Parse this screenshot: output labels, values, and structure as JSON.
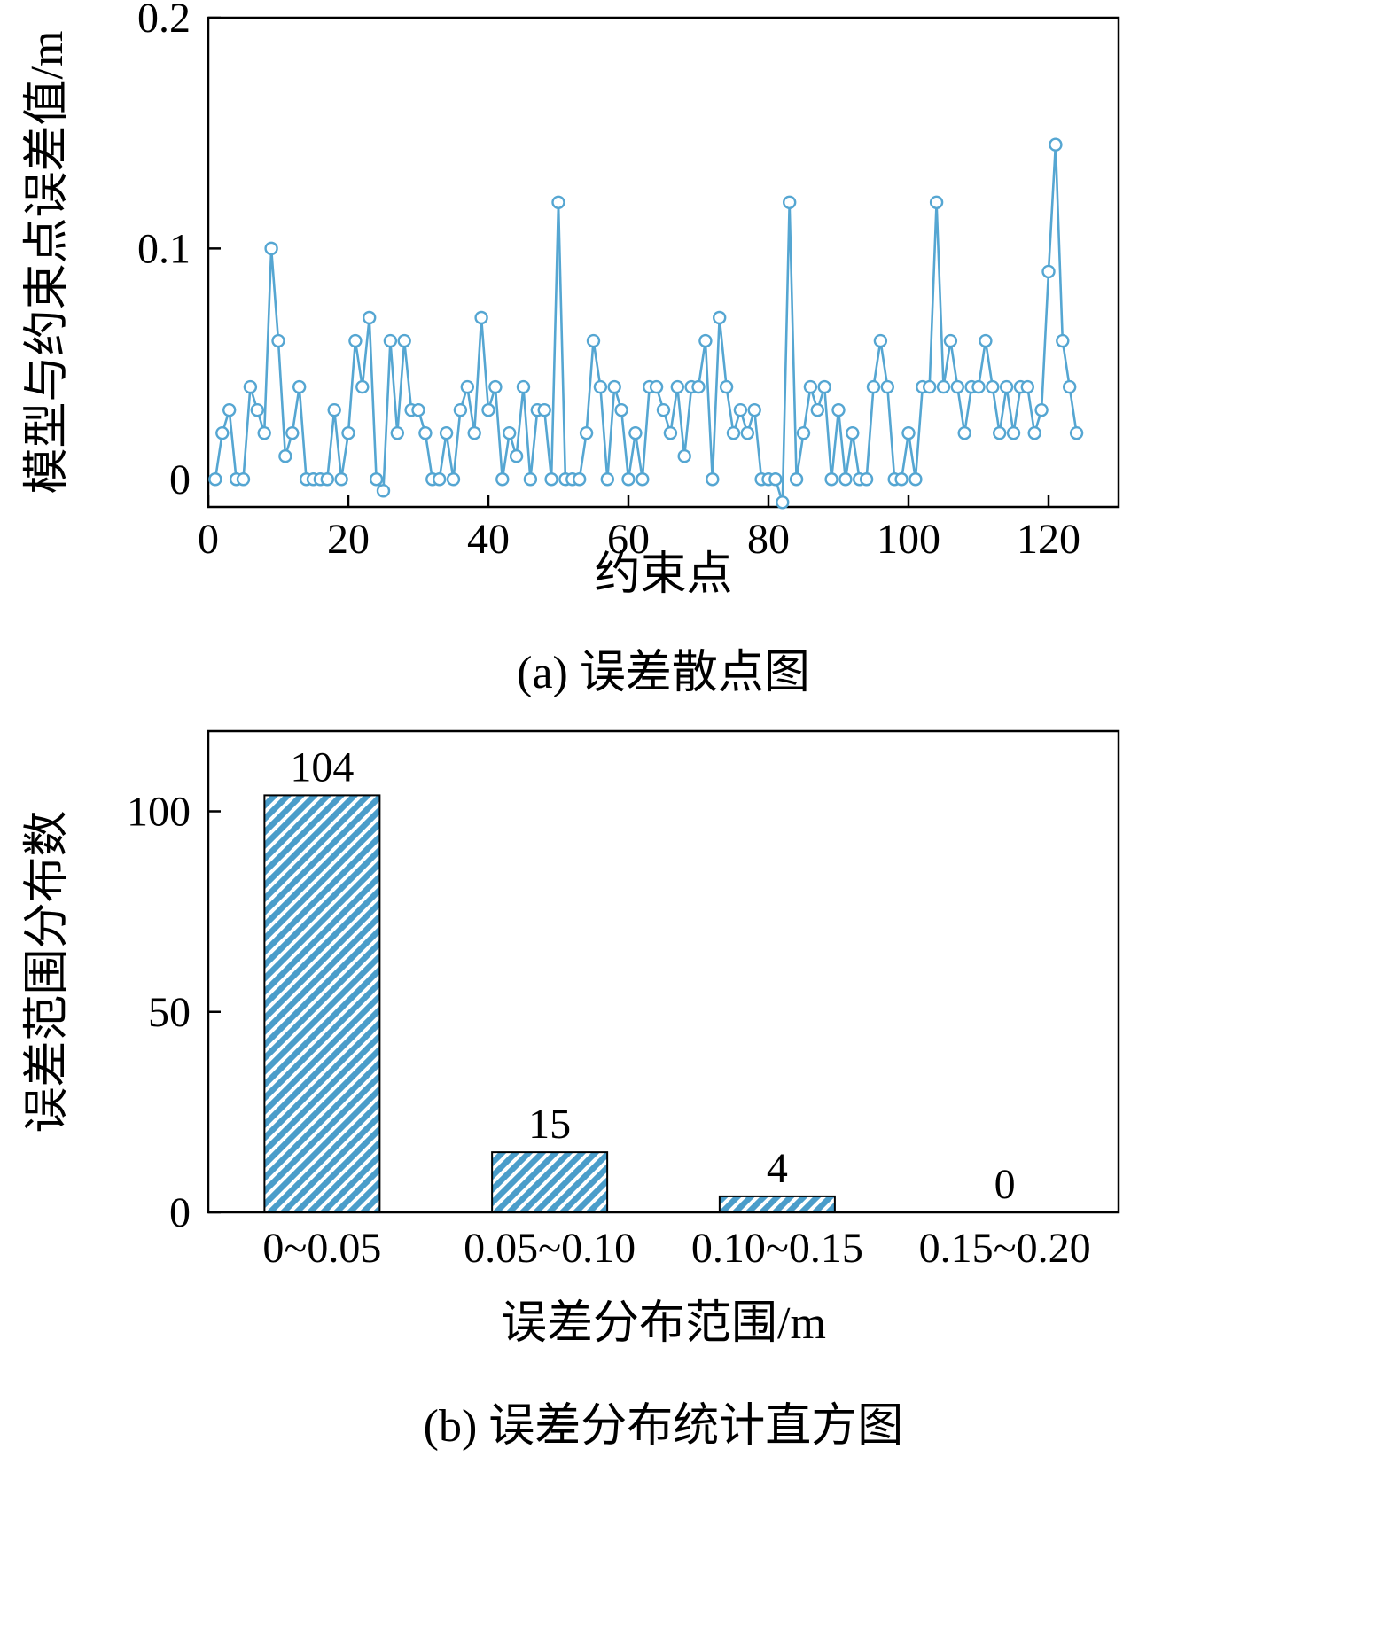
{
  "colors": {
    "series": "#55a6d2",
    "bar_fill": "#4a9dca",
    "bar_hatch": "#ffffff",
    "axis": "#000000",
    "background": "#ffffff"
  },
  "chart_data": [
    {
      "type": "line",
      "caption": "(a) 误差散点图",
      "xlabel": "约束点",
      "ylabel": "模型与约束点误差值/m",
      "xlim": [
        0,
        130
      ],
      "ylim": [
        -0.012,
        0.2
      ],
      "xticks": [
        0,
        20,
        40,
        60,
        80,
        100,
        120
      ],
      "yticks": [
        0,
        0.1,
        0.2
      ],
      "ytick_labels": [
        "0",
        "0.1",
        "0.2"
      ],
      "marker": "open-circle",
      "grid": false,
      "legend": "none",
      "y": [
        0.0,
        0.02,
        0.03,
        0.0,
        0.0,
        0.04,
        0.03,
        0.02,
        0.1,
        0.06,
        0.01,
        0.02,
        0.04,
        0.0,
        0.0,
        0.0,
        0.0,
        0.03,
        0.0,
        0.02,
        0.06,
        0.04,
        0.07,
        0.0,
        -0.005,
        0.06,
        0.02,
        0.06,
        0.03,
        0.03,
        0.02,
        0.0,
        0.0,
        0.02,
        0.0,
        0.03,
        0.04,
        0.02,
        0.07,
        0.03,
        0.04,
        0.0,
        0.02,
        0.01,
        0.04,
        0.0,
        0.03,
        0.03,
        0.0,
        0.12,
        0.0,
        0.0,
        0.0,
        0.02,
        0.06,
        0.04,
        0.0,
        0.04,
        0.03,
        0.0,
        0.02,
        0.0,
        0.04,
        0.04,
        0.03,
        0.02,
        0.04,
        0.01,
        0.04,
        0.04,
        0.06,
        0.0,
        0.07,
        0.04,
        0.02,
        0.03,
        0.02,
        0.03,
        0.0,
        0.0,
        0.0,
        -0.01,
        0.12,
        0.0,
        0.02,
        0.04,
        0.03,
        0.04,
        0.0,
        0.03,
        0.0,
        0.02,
        0.0,
        0.0,
        0.04,
        0.06,
        0.04,
        0.0,
        0.0,
        0.02,
        0.0,
        0.04,
        0.04,
        0.12,
        0.04,
        0.06,
        0.04,
        0.02,
        0.04,
        0.04,
        0.06,
        0.04,
        0.02,
        0.04,
        0.02,
        0.04,
        0.04,
        0.02,
        0.03,
        0.09,
        0.145,
        0.06,
        0.04,
        0.02
      ]
    },
    {
      "type": "bar",
      "caption": "(b) 误差分布统计直方图",
      "xlabel": "误差分布范围/m",
      "ylabel": "误差范围分布数",
      "categories": [
        "0~0.05",
        "0.05~0.10",
        "0.10~0.15",
        "0.15~0.20"
      ],
      "values": [
        104,
        15,
        4,
        0
      ],
      "bar_labels": [
        "104",
        "15",
        "4",
        "0"
      ],
      "ylim": [
        0,
        120
      ],
      "yticks": [
        0,
        50,
        100
      ],
      "ytick_labels": [
        "0",
        "50",
        "100"
      ],
      "grid": false,
      "legend": "none",
      "hatch": "diagonal-forward"
    }
  ]
}
